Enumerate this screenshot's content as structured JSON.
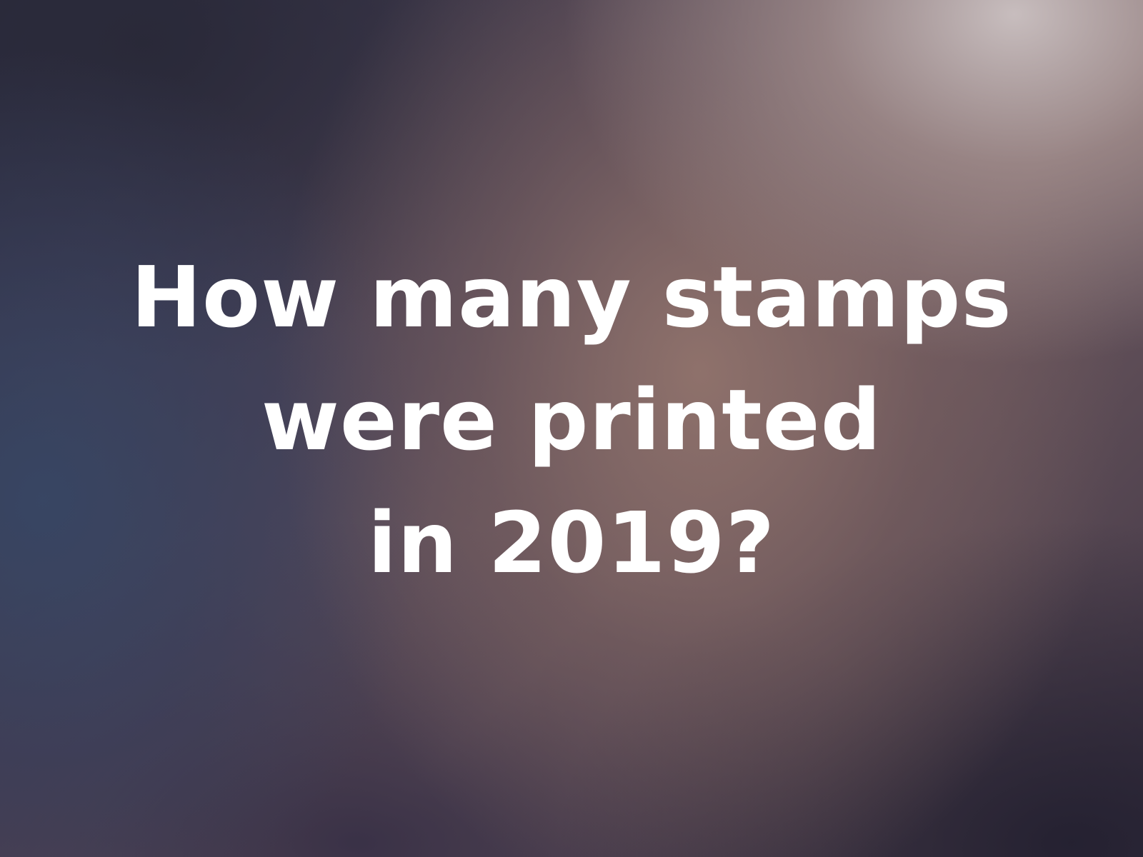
{
  "question": {
    "lines": [
      "How many stamps",
      "were printed",
      "in 2019?"
    ]
  },
  "colors": {
    "text": "#ffffff",
    "background_dark": "#2c2c40",
    "background_warm": "#91736c",
    "background_light": "#cdc3c3"
  }
}
